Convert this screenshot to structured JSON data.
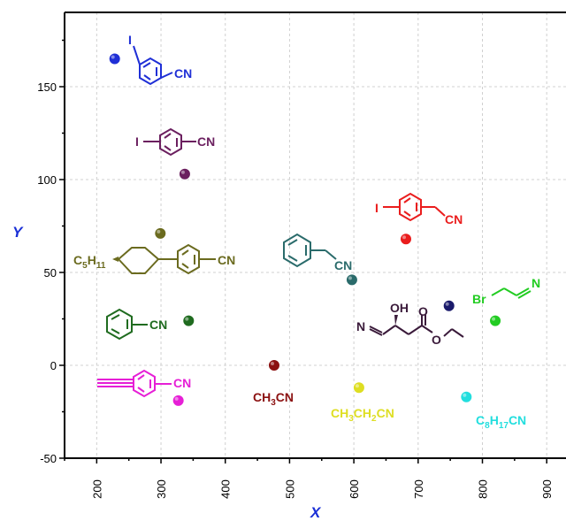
{
  "chart_data": {
    "type": "scatter",
    "title": "",
    "xlabel": "X",
    "ylabel": "Y",
    "xlim": [
      150,
      930
    ],
    "ylim": [
      -50,
      190
    ],
    "x_ticks": [
      "200",
      "300",
      "400",
      "500",
      "600",
      "700",
      "800",
      "900"
    ],
    "y_ticks": [
      "-50",
      "0",
      "50",
      "100",
      "150"
    ],
    "grid": true,
    "axis_title_color": "#1a2fd6",
    "points": [
      {
        "name": "3-iodobenzonitrile",
        "x": 228,
        "y": 165,
        "color": "#1f2fd6"
      },
      {
        "name": "4-iodobenzonitrile",
        "x": 337,
        "y": 103,
        "color": "#6b1f5f"
      },
      {
        "name": "4-(trans-4-pentylcyclohexyl)benzonitrile",
        "x": 299,
        "y": 71,
        "color": "#6b6b1f"
      },
      {
        "name": "benzonitrile",
        "x": 343,
        "y": 24,
        "color": "#1f6b1f"
      },
      {
        "name": "4-ethynylbenzonitrile",
        "x": 327,
        "y": -19,
        "color": "#e61fd6"
      },
      {
        "name": "CH3CN",
        "x": 476,
        "y": 0,
        "color": "#8b1010"
      },
      {
        "name": "benzyl cyanide",
        "x": 597,
        "y": 46,
        "color": "#2a6b6b"
      },
      {
        "name": "4-iodophenylacetonitrile",
        "x": 681,
        "y": 68,
        "color": "#ea1d1d"
      },
      {
        "name": "ethyl 4-cyano-3-hydroxybutanoate",
        "x": 748,
        "y": 32,
        "color": "#1a1a6b"
      },
      {
        "name": "CH3CH2CN",
        "x": 608,
        "y": -12,
        "color": "#dede22"
      },
      {
        "name": "C8H17CN",
        "x": 775,
        "y": -17,
        "color": "#22dede"
      },
      {
        "name": "3-bromopropionitrile",
        "x": 820,
        "y": 24,
        "color": "#22cc22"
      }
    ]
  },
  "labels": {
    "l1": "CN",
    "l2": "I",
    "l3": "CN",
    "l4": "I",
    "l5_main": "C",
    "l5_sub": "5",
    "l5_h": "H",
    "l5_sub2": "11",
    "l5_cn": "CN",
    "l6": "CN",
    "l7": "CN",
    "l8_a": "CH",
    "l8_s": "3",
    "l8_b": "CN",
    "l9": "CN",
    "l10_i": "I",
    "l10_cn": "CN",
    "l11_n": "N",
    "l11_oh": "OH",
    "l11_o1": "O",
    "l11_o2": "O",
    "l12_a": "CH",
    "l12_s1": "3",
    "l12_b": "CH",
    "l12_s2": "2",
    "l12_c": "CN",
    "l13_a": "C",
    "l13_s1": "8",
    "l13_b": "H",
    "l13_s2": "17",
    "l13_c": "CN",
    "l14_br": "Br",
    "l14_n": "N"
  }
}
